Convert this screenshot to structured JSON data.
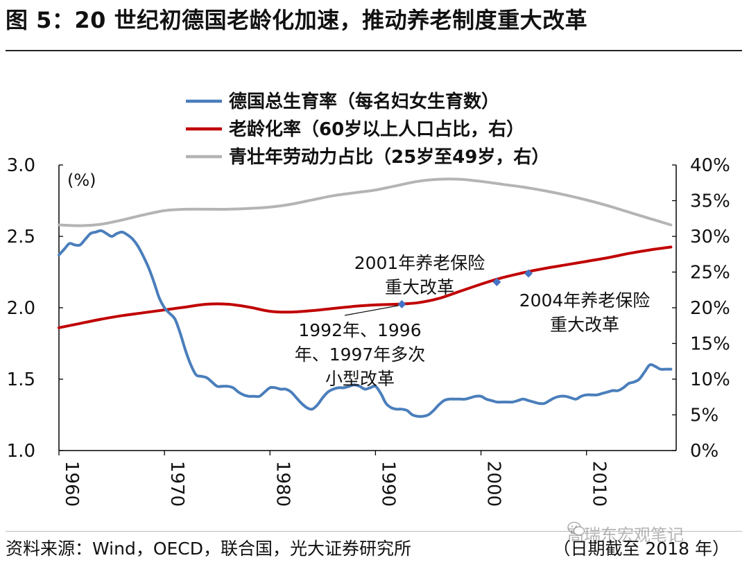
{
  "figure": {
    "title": "图 5：20 世纪初德国老龄化加速，推动养老制度重大改革",
    "source": "资料来源：Wind，OECD，联合国，光大证券研究所",
    "date_note": "（日期截至 2018 年）",
    "watermark": "高瑞东宏观笔记",
    "watermark_icon": "wechat-icon"
  },
  "chart_data": {
    "type": "line",
    "unit_label": "(%)",
    "x_range": [
      1960,
      2018.5
    ],
    "x_ticks": [
      {
        "value": 1960,
        "label": "1960"
      },
      {
        "value": 1970,
        "label": "1970"
      },
      {
        "value": 1980,
        "label": "1980"
      },
      {
        "value": 1990,
        "label": "1990"
      },
      {
        "value": 2000,
        "label": "2000"
      },
      {
        "value": 2010,
        "label": "2010"
      }
    ],
    "y_left": {
      "range": [
        1.0,
        3.0
      ],
      "ticks": [
        {
          "value": 1.0,
          "label": "1.0"
        },
        {
          "value": 1.5,
          "label": "1.5"
        },
        {
          "value": 2.0,
          "label": "2.0"
        },
        {
          "value": 2.5,
          "label": "2.5"
        },
        {
          "value": 3.0,
          "label": "3.0"
        }
      ]
    },
    "y_right": {
      "range": [
        0,
        40
      ],
      "ticks": [
        {
          "value": 0,
          "label": "0%"
        },
        {
          "value": 5,
          "label": "5%"
        },
        {
          "value": 10,
          "label": "10%"
        },
        {
          "value": 15,
          "label": "15%"
        },
        {
          "value": 20,
          "label": "20%"
        },
        {
          "value": 25,
          "label": "25%"
        },
        {
          "value": 30,
          "label": "30%"
        },
        {
          "value": 35,
          "label": "35%"
        },
        {
          "value": 40,
          "label": "40%"
        }
      ]
    },
    "legend_position": "top-center",
    "series": [
      {
        "name": "德国总生育率（每名妇女生育数）",
        "axis": "left",
        "color": "#4A7EBB",
        "points": [
          [
            1960,
            2.37
          ],
          [
            1960.5,
            2.41
          ],
          [
            1961,
            2.45
          ],
          [
            1961.5,
            2.44
          ],
          [
            1962,
            2.44
          ],
          [
            1962.5,
            2.48
          ],
          [
            1963,
            2.52
          ],
          [
            1963.5,
            2.53
          ],
          [
            1964,
            2.54
          ],
          [
            1964.5,
            2.52
          ],
          [
            1965,
            2.5
          ],
          [
            1965.5,
            2.52
          ],
          [
            1966,
            2.53
          ],
          [
            1966.5,
            2.51
          ],
          [
            1967,
            2.48
          ],
          [
            1967.5,
            2.43
          ],
          [
            1968,
            2.36
          ],
          [
            1968.5,
            2.28
          ],
          [
            1969,
            2.18
          ],
          [
            1969.5,
            2.07
          ],
          [
            1970,
            2.0
          ],
          [
            1970.5,
            1.96
          ],
          [
            1971,
            1.92
          ],
          [
            1971.5,
            1.82
          ],
          [
            1972,
            1.7
          ],
          [
            1972.5,
            1.6
          ],
          [
            1973,
            1.53
          ],
          [
            1973.5,
            1.52
          ],
          [
            1974,
            1.51
          ],
          [
            1974.5,
            1.48
          ],
          [
            1975,
            1.45
          ],
          [
            1975.5,
            1.45
          ],
          [
            1976,
            1.45
          ],
          [
            1976.5,
            1.44
          ],
          [
            1977,
            1.41
          ],
          [
            1977.5,
            1.39
          ],
          [
            1978,
            1.38
          ],
          [
            1978.5,
            1.38
          ],
          [
            1979,
            1.38
          ],
          [
            1979.5,
            1.41
          ],
          [
            1980,
            1.44
          ],
          [
            1980.5,
            1.44
          ],
          [
            1981,
            1.43
          ],
          [
            1981.5,
            1.43
          ],
          [
            1982,
            1.41
          ],
          [
            1982.5,
            1.37
          ],
          [
            1983,
            1.33
          ],
          [
            1983.5,
            1.3
          ],
          [
            1984,
            1.29
          ],
          [
            1984.5,
            1.32
          ],
          [
            1985,
            1.37
          ],
          [
            1985.5,
            1.41
          ],
          [
            1986,
            1.43
          ],
          [
            1986.5,
            1.44
          ],
          [
            1987,
            1.44
          ],
          [
            1987.5,
            1.45
          ],
          [
            1988,
            1.46
          ],
          [
            1988.5,
            1.45
          ],
          [
            1989,
            1.43
          ],
          [
            1989.5,
            1.44
          ],
          [
            1990,
            1.45
          ],
          [
            1990.5,
            1.4
          ],
          [
            1991,
            1.33
          ],
          [
            1991.5,
            1.3
          ],
          [
            1992,
            1.29
          ],
          [
            1992.5,
            1.29
          ],
          [
            1993,
            1.28
          ],
          [
            1993.5,
            1.25
          ],
          [
            1994,
            1.24
          ],
          [
            1994.5,
            1.24
          ],
          [
            1995,
            1.25
          ],
          [
            1995.5,
            1.28
          ],
          [
            1996,
            1.32
          ],
          [
            1996.5,
            1.35
          ],
          [
            1997,
            1.36
          ],
          [
            1997.5,
            1.36
          ],
          [
            1998,
            1.36
          ],
          [
            1998.5,
            1.36
          ],
          [
            1999,
            1.37
          ],
          [
            1999.5,
            1.38
          ],
          [
            2000,
            1.38
          ],
          [
            2000.5,
            1.36
          ],
          [
            2001,
            1.35
          ],
          [
            2001.5,
            1.34
          ],
          [
            2002,
            1.34
          ],
          [
            2002.5,
            1.34
          ],
          [
            2003,
            1.34
          ],
          [
            2003.5,
            1.35
          ],
          [
            2004,
            1.36
          ],
          [
            2004.5,
            1.35
          ],
          [
            2005,
            1.34
          ],
          [
            2005.5,
            1.33
          ],
          [
            2006,
            1.33
          ],
          [
            2006.5,
            1.35
          ],
          [
            2007,
            1.37
          ],
          [
            2007.5,
            1.38
          ],
          [
            2008,
            1.38
          ],
          [
            2008.5,
            1.37
          ],
          [
            2009,
            1.36
          ],
          [
            2009.5,
            1.38
          ],
          [
            2010,
            1.39
          ],
          [
            2010.5,
            1.39
          ],
          [
            2011,
            1.39
          ],
          [
            2011.5,
            1.4
          ],
          [
            2012,
            1.41
          ],
          [
            2012.5,
            1.42
          ],
          [
            2013,
            1.42
          ],
          [
            2013.5,
            1.44
          ],
          [
            2014,
            1.47
          ],
          [
            2014.5,
            1.48
          ],
          [
            2015,
            1.5
          ],
          [
            2015.5,
            1.55
          ],
          [
            2016,
            1.6
          ],
          [
            2016.5,
            1.59
          ],
          [
            2017,
            1.57
          ],
          [
            2017.5,
            1.57
          ],
          [
            2018,
            1.57
          ]
        ]
      },
      {
        "name": "老龄化率（60岁以上人口占比，右）",
        "axis": "right",
        "color": "#C00000",
        "points": [
          [
            1960,
            17.2
          ],
          [
            1962,
            17.8
          ],
          [
            1964,
            18.4
          ],
          [
            1966,
            18.9
          ],
          [
            1968,
            19.3
          ],
          [
            1970,
            19.7
          ],
          [
            1972,
            20.1
          ],
          [
            1974,
            20.5
          ],
          [
            1976,
            20.5
          ],
          [
            1978,
            20.1
          ],
          [
            1980,
            19.5
          ],
          [
            1982,
            19.4
          ],
          [
            1984,
            19.6
          ],
          [
            1986,
            19.9
          ],
          [
            1988,
            20.2
          ],
          [
            1990,
            20.4
          ],
          [
            1992,
            20.5
          ],
          [
            1994,
            20.7
          ],
          [
            1996,
            21.3
          ],
          [
            1998,
            22.3
          ],
          [
            2000,
            23.3
          ],
          [
            2002,
            24.2
          ],
          [
            2004,
            24.9
          ],
          [
            2006,
            25.5
          ],
          [
            2008,
            26.0
          ],
          [
            2010,
            26.5
          ],
          [
            2012,
            27.0
          ],
          [
            2014,
            27.6
          ],
          [
            2016,
            28.1
          ],
          [
            2018,
            28.5
          ]
        ]
      },
      {
        "name": "青壮年劳动力占比（25岁至49岁，右）",
        "axis": "right",
        "color": "#B4B4B4",
        "points": [
          [
            1960,
            31.6
          ],
          [
            1962,
            31.5
          ],
          [
            1964,
            31.7
          ],
          [
            1966,
            32.3
          ],
          [
            1968,
            33.0
          ],
          [
            1970,
            33.6
          ],
          [
            1972,
            33.8
          ],
          [
            1974,
            33.8
          ],
          [
            1976,
            33.8
          ],
          [
            1978,
            33.9
          ],
          [
            1980,
            34.1
          ],
          [
            1982,
            34.5
          ],
          [
            1984,
            35.1
          ],
          [
            1986,
            35.7
          ],
          [
            1988,
            36.1
          ],
          [
            1990,
            36.5
          ],
          [
            1992,
            37.1
          ],
          [
            1994,
            37.7
          ],
          [
            1996,
            38.0
          ],
          [
            1998,
            38.0
          ],
          [
            2000,
            37.7
          ],
          [
            2002,
            37.3
          ],
          [
            2004,
            36.9
          ],
          [
            2006,
            36.4
          ],
          [
            2008,
            35.8
          ],
          [
            2010,
            35.1
          ],
          [
            2012,
            34.3
          ],
          [
            2014,
            33.4
          ],
          [
            2016,
            32.5
          ],
          [
            2018,
            31.6
          ]
        ]
      }
    ],
    "markers": [
      {
        "x": 1992.5,
        "y": 20.5,
        "axis": "right"
      },
      {
        "x": 2001.5,
        "y": 23.6,
        "axis": "right"
      },
      {
        "x": 2004.5,
        "y": 24.8,
        "axis": "right"
      }
    ],
    "annotations": [
      {
        "lines": [
          "2001年养老保险",
          "重大改革"
        ]
      },
      {
        "lines": [
          "2004年养老保险",
          "重大改革"
        ]
      },
      {
        "lines": [
          "1992年、1996",
          "年、1997年多次",
          "小型改革"
        ]
      }
    ]
  }
}
